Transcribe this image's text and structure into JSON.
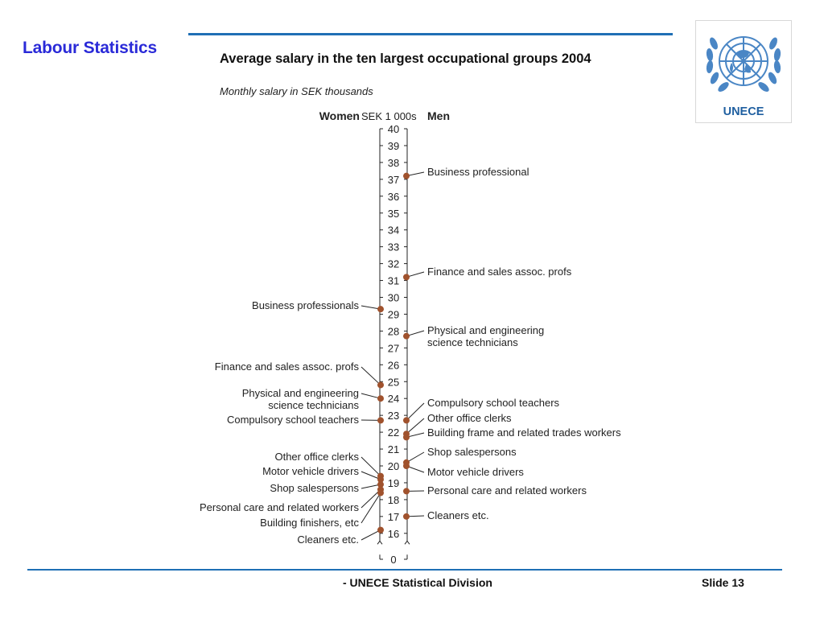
{
  "slide": {
    "title": "Labour Statistics",
    "footer": "- UNECE Statistical Division",
    "slide_number": "Slide 13",
    "logo_text": "UNECE",
    "colors": {
      "accent": "#1f6fb5",
      "title": "#2a2ad8",
      "marker": "#a0522d",
      "logo": "#4a86c5"
    }
  },
  "chart_data": {
    "type": "scatter",
    "title": "Average salary in the ten largest occupational groups 2004",
    "subtitle": "Monthly salary in SEK thousands",
    "axis_label": "SEK 1 000s",
    "left_heading": "Women",
    "right_heading": "Men",
    "ticks": [
      40,
      39,
      38,
      37,
      36,
      35,
      34,
      33,
      32,
      31,
      30,
      29,
      28,
      27,
      26,
      25,
      24,
      23,
      22,
      21,
      20,
      19,
      18,
      17,
      16,
      0
    ],
    "axis_break_between": [
      16,
      0
    ],
    "ylim": [
      15.5,
      40
    ],
    "series": [
      {
        "name": "Women",
        "points": [
          {
            "label": "Business professionals",
            "value": 29.3
          },
          {
            "label": "Finance and sales assoc. profs",
            "value": 24.8
          },
          {
            "label": "Physical and engineering\nscience technicians",
            "value": 24.0
          },
          {
            "label": "Compulsory school teachers",
            "value": 22.7
          },
          {
            "label": "Other office clerks",
            "value": 19.4
          },
          {
            "label": "Motor vehicle drivers",
            "value": 19.2
          },
          {
            "label": "Shop salespersons",
            "value": 18.9
          },
          {
            "label": "Personal care and related workers",
            "value": 18.6
          },
          {
            "label": "Building finishers, etc",
            "value": 18.4
          },
          {
            "label": "Cleaners etc.",
            "value": 16.2
          }
        ]
      },
      {
        "name": "Men",
        "points": [
          {
            "label": "Business professional",
            "value": 37.2
          },
          {
            "label": "Finance and sales assoc. profs",
            "value": 31.2
          },
          {
            "label": "Physical and engineering\nscience technicians",
            "value": 27.7
          },
          {
            "label": "Compulsory school teachers",
            "value": 22.7
          },
          {
            "label": "Other office clerks",
            "value": 21.9
          },
          {
            "label": "Building frame and related trades workers",
            "value": 21.7
          },
          {
            "label": "Shop salespersons",
            "value": 20.2
          },
          {
            "label": "Motor vehicle drivers",
            "value": 20.0
          },
          {
            "label": "Personal care and related workers",
            "value": 18.5
          },
          {
            "label": "Cleaners etc.",
            "value": 17.0
          }
        ]
      }
    ]
  }
}
